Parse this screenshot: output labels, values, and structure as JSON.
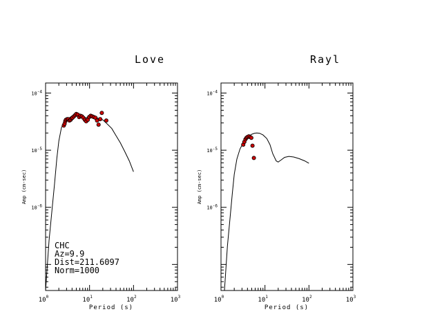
{
  "chart_data": [
    {
      "type": "scatter",
      "title": "Love",
      "xlabel": "Period (s)",
      "ylabel": "Amp (cm-sec)",
      "xscale": "log",
      "yscale": "log",
      "xlim": [
        1,
        1000
      ],
      "ylim": [
        3.5e-08,
        0.00015
      ],
      "xticks": [
        {
          "base": "10",
          "exp": "0"
        },
        {
          "base": "10",
          "exp": "1"
        },
        {
          "base": "10",
          "exp": "2"
        },
        {
          "base": "10",
          "exp": "3"
        }
      ],
      "yticks": [
        {
          "base": "10",
          "exp": "-4",
          "value": 0.0001
        },
        {
          "base": "10",
          "exp": "-5",
          "value": 1e-05
        },
        {
          "base": "10",
          "exp": "-6",
          "value": 1e-06
        }
      ],
      "annotations": [
        "CHC",
        "Az=9.9",
        "Dist=211.6097",
        "Norm=1000"
      ],
      "series": [
        {
          "kind": "line",
          "x": [
            1.0,
            1.2,
            1.4,
            1.6,
            1.8,
            2.0,
            2.3,
            2.7,
            3.2,
            4.0,
            5.0,
            6.0,
            7.0,
            8.0,
            10.0,
            13.0,
            16.0,
            20.0,
            25.0,
            32.0,
            40.0,
            50.0,
            63.0,
            80.0,
            100.0
          ],
          "y": [
            3.5e-08,
            2.6e-07,
            9e-07,
            2.6e-06,
            7.2e-06,
            1.45e-05,
            2.5e-05,
            3.1e-05,
            3.5e-05,
            4e-05,
            4.3e-05,
            4.1e-05,
            3.9e-05,
            3.7e-05,
            3.8e-05,
            3.8e-05,
            3.6e-05,
            3.4e-05,
            2.9e-05,
            2.4e-05,
            1.8e-05,
            1.35e-05,
            9.5e-06,
            6.5e-06,
            4.2e-06
          ]
        },
        {
          "kind": "points",
          "x": [
            2.6,
            2.7,
            2.8,
            2.9,
            3.1,
            3.3,
            3.5,
            3.7,
            3.9,
            4.1,
            4.4,
            4.7,
            5.0,
            5.4,
            5.8,
            6.2,
            6.7,
            7.2,
            7.8,
            8.4,
            9.1,
            9.8,
            10.6,
            11.5,
            12.5,
            13.6,
            14.8,
            16.0,
            17.5,
            19.0,
            24.0
          ],
          "y": [
            2.7e-05,
            2.9e-05,
            3.2e-05,
            3.4e-05,
            3.5e-05,
            3.5e-05,
            3.3e-05,
            3.4e-05,
            3.6e-05,
            3.7e-05,
            3.9e-05,
            4.1e-05,
            4.3e-05,
            4.2e-05,
            3.8e-05,
            4e-05,
            3.9e-05,
            3.7e-05,
            3.4e-05,
            3.2e-05,
            3.4e-05,
            3.8e-05,
            4e-05,
            3.9e-05,
            3.8e-05,
            3.7e-05,
            3.3e-05,
            2.8e-05,
            3.5e-05,
            4.5e-05,
            3.3e-05
          ]
        }
      ],
      "colors": {
        "line": "#000000",
        "points": "#cc0000"
      }
    },
    {
      "type": "scatter",
      "title": "Rayl",
      "xlabel": "Period (s)",
      "ylabel": "Amp (cm-sec)",
      "xscale": "log",
      "yscale": "log",
      "xlim": [
        1,
        1000
      ],
      "ylim": [
        3.5e-08,
        0.00015
      ],
      "xticks": [
        {
          "base": "10",
          "exp": "0"
        },
        {
          "base": "10",
          "exp": "1"
        },
        {
          "base": "10",
          "exp": "2"
        },
        {
          "base": "10",
          "exp": "3"
        }
      ],
      "yticks": [
        {
          "base": "10",
          "exp": "-4",
          "value": 0.0001
        },
        {
          "base": "10",
          "exp": "-5",
          "value": 1e-05
        },
        {
          "base": "10",
          "exp": "-6",
          "value": 1e-06
        }
      ],
      "series": [
        {
          "kind": "line",
          "x": [
            1.0,
            1.2,
            1.4,
            1.6,
            1.8,
            2.0,
            2.3,
            2.7,
            3.2,
            3.7,
            4.2,
            5.0,
            5.8,
            6.5,
            7.5,
            9.0,
            11.0,
            13.0,
            15.0,
            18.0,
            20.0,
            23.0,
            28.0,
            35.0,
            45.0,
            60.0,
            80.0,
            100.0
          ],
          "y": [
            3.5e-08,
            3.5e-08,
            2.1e-07,
            6.3e-07,
            1.7e-06,
            3.8e-06,
            7e-06,
            1.05e-05,
            1.35e-05,
            1.6e-05,
            1.75e-05,
            1.9e-05,
            1.98e-05,
            2e-05,
            1.98e-05,
            1.85e-05,
            1.6e-05,
            1.25e-05,
            8.7e-06,
            6.5e-06,
            6.2e-06,
            6.7e-06,
            7.5e-06,
            7.8e-06,
            7.6e-06,
            7.1e-06,
            6.5e-06,
            5.9e-06
          ]
        },
        {
          "kind": "points",
          "x": [
            3.2,
            3.4,
            3.6,
            3.8,
            4.0,
            4.3,
            4.6,
            4.9,
            5.2,
            5.6
          ],
          "y": [
            1.25e-05,
            1.4e-05,
            1.55e-05,
            1.65e-05,
            1.7e-05,
            1.75e-05,
            1.7e-05,
            1.65e-05,
            1.2e-05,
            7.3e-06
          ]
        }
      ],
      "colors": {
        "line": "#000000",
        "points": "#cc0000"
      }
    }
  ]
}
